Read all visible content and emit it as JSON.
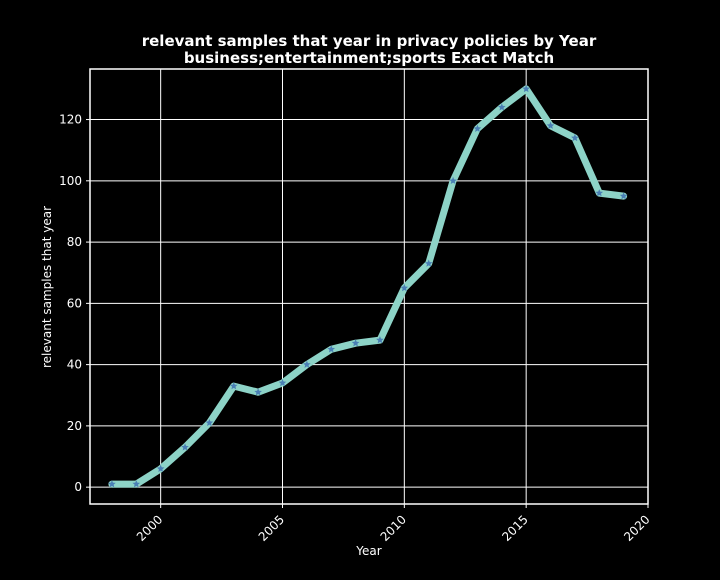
{
  "chart_data": {
    "type": "line",
    "title": "relevant samples that year in privacy policies by Year",
    "subtitle": "business;entertainment;sports Exact Match",
    "xlabel": "Year",
    "ylabel": "relevant samples that year",
    "xlim": [
      1997.1,
      2020
    ],
    "ylim": [
      -5.5,
      136.5
    ],
    "x_ticks": [
      2000,
      2005,
      2010,
      2015,
      2020
    ],
    "x_tick_labels": [
      "2000",
      "2005",
      "2010",
      "2015",
      "2020"
    ],
    "y_ticks": [
      0,
      20,
      40,
      60,
      80,
      100,
      120
    ],
    "y_tick_labels": [
      "0",
      "20",
      "40",
      "60",
      "80",
      "100",
      "120"
    ],
    "grid": true,
    "legend": "none",
    "colors": {
      "background": "#000000",
      "line": "#8dd3c7",
      "marker": "#4a7fb5",
      "grid": "#ffffff",
      "text": "#ffffff"
    },
    "series": [
      {
        "x": [
          1998,
          1999,
          2000,
          2001,
          2002,
          2003,
          2004,
          2005,
          2006,
          2007,
          2008,
          2009,
          2010,
          2011,
          2012,
          2013,
          2014,
          2015,
          2016,
          2017,
          2018,
          2019
        ],
        "values": [
          1,
          1,
          6,
          13,
          21,
          33,
          31,
          34,
          40,
          45,
          47,
          48,
          65,
          73,
          100,
          117,
          124,
          130,
          118,
          114,
          96,
          95
        ]
      }
    ]
  }
}
